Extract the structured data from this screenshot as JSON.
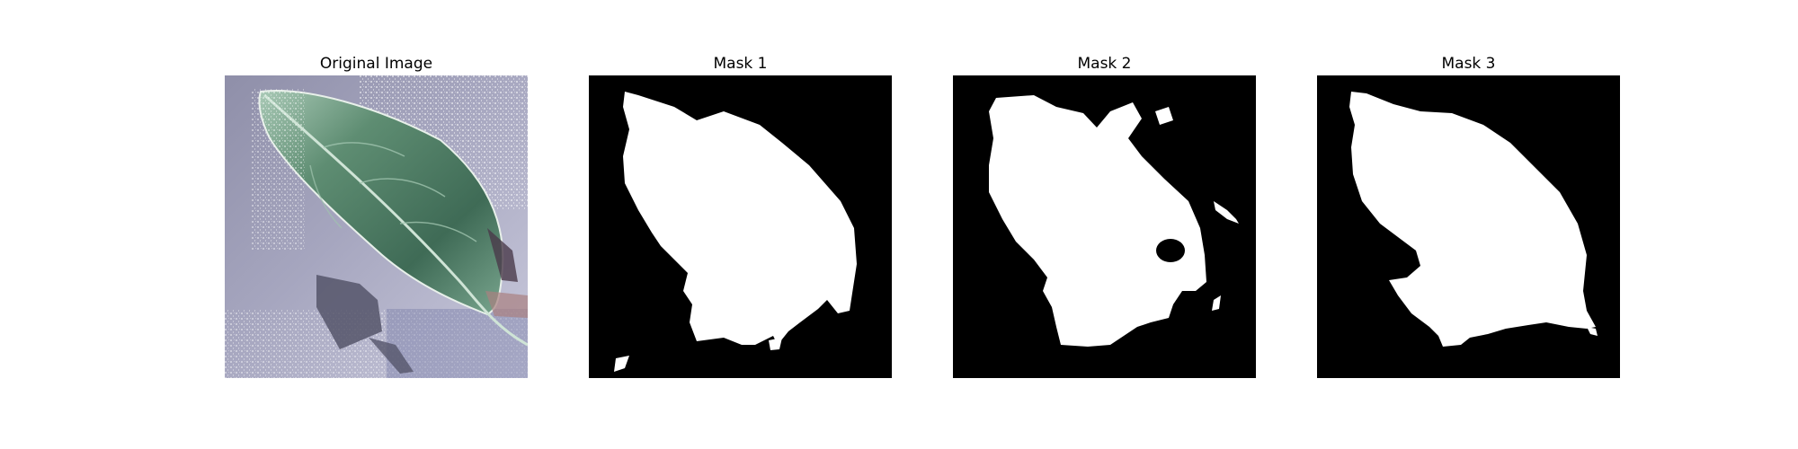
{
  "figure": {
    "background": "#ffffff",
    "panels": [
      {
        "title": "Original Image",
        "kind": "photo",
        "subject": "leaf-photo"
      },
      {
        "title": "Mask 1",
        "kind": "mask",
        "subject": "leaf-mask"
      },
      {
        "title": "Mask 2",
        "kind": "mask",
        "subject": "leaf-mask"
      },
      {
        "title": "Mask 3",
        "kind": "mask",
        "subject": "leaf-mask"
      }
    ]
  },
  "colors": {
    "mask_foreground": "#ffffff",
    "mask_background": "#000000",
    "leaf_green": "#4f7d65",
    "leaf_dark": "#3e6a55",
    "surface_lavender": "#a3a3bd",
    "surface_light": "#d9d9e8"
  }
}
